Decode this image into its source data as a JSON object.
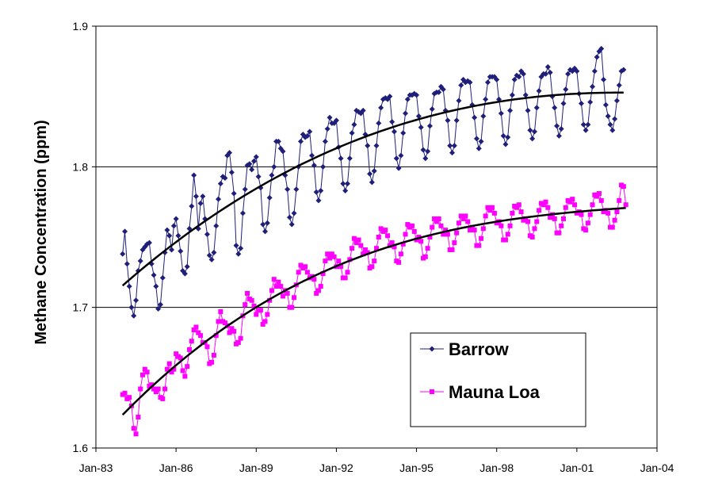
{
  "chart_data": {
    "type": "line",
    "title": "",
    "xlabel": "",
    "ylabel": "Methane Concentration (ppm)",
    "ylim": [
      1.6,
      1.9
    ],
    "yticks": [
      "1.6",
      "1.7",
      "1.8",
      "1.9"
    ],
    "xlim": [
      "Jan-83",
      "Jan-04"
    ],
    "xticks": [
      "Jan-83",
      "Jan-86",
      "Jan-89",
      "Jan-92",
      "Jan-95",
      "Jan-98",
      "Jan-01",
      "Jan-04"
    ],
    "grid": "horizontal",
    "legend_position": "bottom-right",
    "series": [
      {
        "name": "Barrow",
        "color": "#1f1f7a",
        "marker": "diamond",
        "start": "Jan-84",
        "frequency": "monthly",
        "values": [
          1.738,
          1.754,
          1.731,
          1.715,
          1.7,
          1.694,
          1.705,
          1.726,
          1.733,
          1.741,
          1.743,
          1.745,
          1.746,
          1.731,
          1.723,
          1.715,
          1.699,
          1.702,
          1.721,
          1.739,
          1.755,
          1.751,
          1.741,
          1.758,
          1.763,
          1.751,
          1.74,
          1.726,
          1.724,
          1.729,
          1.756,
          1.772,
          1.794,
          1.779,
          1.756,
          1.774,
          1.779,
          1.763,
          1.752,
          1.737,
          1.734,
          1.739,
          1.758,
          1.777,
          1.788,
          1.793,
          1.792,
          1.808,
          1.81,
          1.796,
          1.781,
          1.744,
          1.738,
          1.742,
          1.767,
          1.784,
          1.801,
          1.802,
          1.798,
          1.804,
          1.807,
          1.793,
          1.785,
          1.759,
          1.754,
          1.76,
          1.778,
          1.794,
          1.8,
          1.818,
          1.818,
          1.813,
          1.811,
          1.794,
          1.784,
          1.764,
          1.759,
          1.767,
          1.784,
          1.8,
          1.818,
          1.823,
          1.821,
          1.822,
          1.825,
          1.808,
          1.801,
          1.782,
          1.776,
          1.783,
          1.8,
          1.818,
          1.827,
          1.835,
          1.831,
          1.831,
          1.833,
          1.814,
          1.806,
          1.788,
          1.783,
          1.788,
          1.806,
          1.824,
          1.83,
          1.84,
          1.839,
          1.838,
          1.84,
          1.823,
          1.815,
          1.795,
          1.789,
          1.797,
          1.815,
          1.831,
          1.842,
          1.848,
          1.849,
          1.848,
          1.85,
          1.832,
          1.825,
          1.806,
          1.799,
          1.808,
          1.824,
          1.838,
          1.848,
          1.851,
          1.851,
          1.852,
          1.851,
          1.836,
          1.828,
          1.812,
          1.806,
          1.811,
          1.829,
          1.841,
          1.852,
          1.853,
          1.853,
          1.857,
          1.855,
          1.84,
          1.833,
          1.815,
          1.81,
          1.815,
          1.833,
          1.847,
          1.858,
          1.862,
          1.86,
          1.861,
          1.86,
          1.844,
          1.835,
          1.82,
          1.813,
          1.818,
          1.836,
          1.848,
          1.86,
          1.864,
          1.864,
          1.864,
          1.862,
          1.848,
          1.838,
          1.822,
          1.816,
          1.821,
          1.84,
          1.851,
          1.862,
          1.865,
          1.864,
          1.868,
          1.866,
          1.851,
          1.84,
          1.826,
          1.82,
          1.825,
          1.842,
          1.854,
          1.864,
          1.866,
          1.866,
          1.871,
          1.867,
          1.85,
          1.842,
          1.829,
          1.822,
          1.827,
          1.845,
          1.855,
          1.866,
          1.869,
          1.868,
          1.87,
          1.868,
          1.852,
          1.845,
          1.83,
          1.826,
          1.83,
          1.846,
          1.857,
          1.868,
          1.878,
          1.882,
          1.884,
          1.862,
          1.844,
          1.836,
          1.83,
          1.826,
          1.834,
          1.847,
          1.858,
          1.868,
          1.869
        ]
      },
      {
        "name": "Mauna Loa",
        "color": "#ff00ff",
        "marker": "square",
        "start": "Jan-84",
        "frequency": "monthly",
        "values": [
          1.638,
          1.639,
          1.635,
          1.636,
          1.63,
          1.614,
          1.61,
          1.622,
          1.642,
          1.652,
          1.656,
          1.654,
          1.644,
          1.645,
          1.642,
          1.64,
          1.642,
          1.636,
          1.635,
          1.642,
          1.656,
          1.66,
          1.654,
          1.656,
          1.667,
          1.665,
          1.664,
          1.655,
          1.651,
          1.658,
          1.67,
          1.676,
          1.684,
          1.686,
          1.682,
          1.68,
          1.675,
          1.675,
          1.672,
          1.66,
          1.661,
          1.666,
          1.68,
          1.69,
          1.697,
          1.69,
          1.689,
          1.687,
          1.682,
          1.685,
          1.683,
          1.674,
          1.675,
          1.678,
          1.694,
          1.702,
          1.71,
          1.706,
          1.705,
          1.701,
          1.695,
          1.698,
          1.698,
          1.688,
          1.69,
          1.695,
          1.705,
          1.712,
          1.72,
          1.715,
          1.718,
          1.715,
          1.708,
          1.712,
          1.71,
          1.7,
          1.7,
          1.707,
          1.716,
          1.725,
          1.73,
          1.728,
          1.729,
          1.725,
          1.721,
          1.722,
          1.72,
          1.71,
          1.712,
          1.715,
          1.724,
          1.733,
          1.738,
          1.735,
          1.738,
          1.736,
          1.729,
          1.733,
          1.729,
          1.721,
          1.721,
          1.725,
          1.734,
          1.742,
          1.749,
          1.746,
          1.748,
          1.744,
          1.738,
          1.741,
          1.739,
          1.728,
          1.729,
          1.733,
          1.742,
          1.75,
          1.756,
          1.754,
          1.755,
          1.751,
          1.744,
          1.746,
          1.743,
          1.733,
          1.732,
          1.738,
          1.745,
          1.752,
          1.759,
          1.757,
          1.758,
          1.754,
          1.748,
          1.75,
          1.747,
          1.735,
          1.736,
          1.742,
          1.75,
          1.757,
          1.763,
          1.761,
          1.763,
          1.758,
          1.752,
          1.755,
          1.752,
          1.741,
          1.741,
          1.746,
          1.753,
          1.76,
          1.765,
          1.763,
          1.765,
          1.761,
          1.755,
          1.757,
          1.755,
          1.744,
          1.744,
          1.749,
          1.756,
          1.765,
          1.771,
          1.769,
          1.771,
          1.767,
          1.76,
          1.761,
          1.758,
          1.748,
          1.748,
          1.752,
          1.758,
          1.767,
          1.772,
          1.771,
          1.773,
          1.768,
          1.762,
          1.763,
          1.761,
          1.751,
          1.75,
          1.756,
          1.761,
          1.769,
          1.774,
          1.773,
          1.775,
          1.771,
          1.764,
          1.766,
          1.763,
          1.753,
          1.753,
          1.758,
          1.763,
          1.771,
          1.776,
          1.775,
          1.777,
          1.773,
          1.767,
          1.768,
          1.766,
          1.756,
          1.755,
          1.76,
          1.766,
          1.773,
          1.78,
          1.779,
          1.781,
          1.776,
          1.768,
          1.769,
          1.767,
          1.757,
          1.757,
          1.762,
          1.768,
          1.776,
          1.787,
          1.786,
          1.773
        ]
      }
    ],
    "trend_lines": [
      {
        "series": "Barrow",
        "color": "#000000",
        "fit": "smooth"
      },
      {
        "series": "Mauna Loa",
        "color": "#000000",
        "fit": "smooth"
      }
    ]
  }
}
